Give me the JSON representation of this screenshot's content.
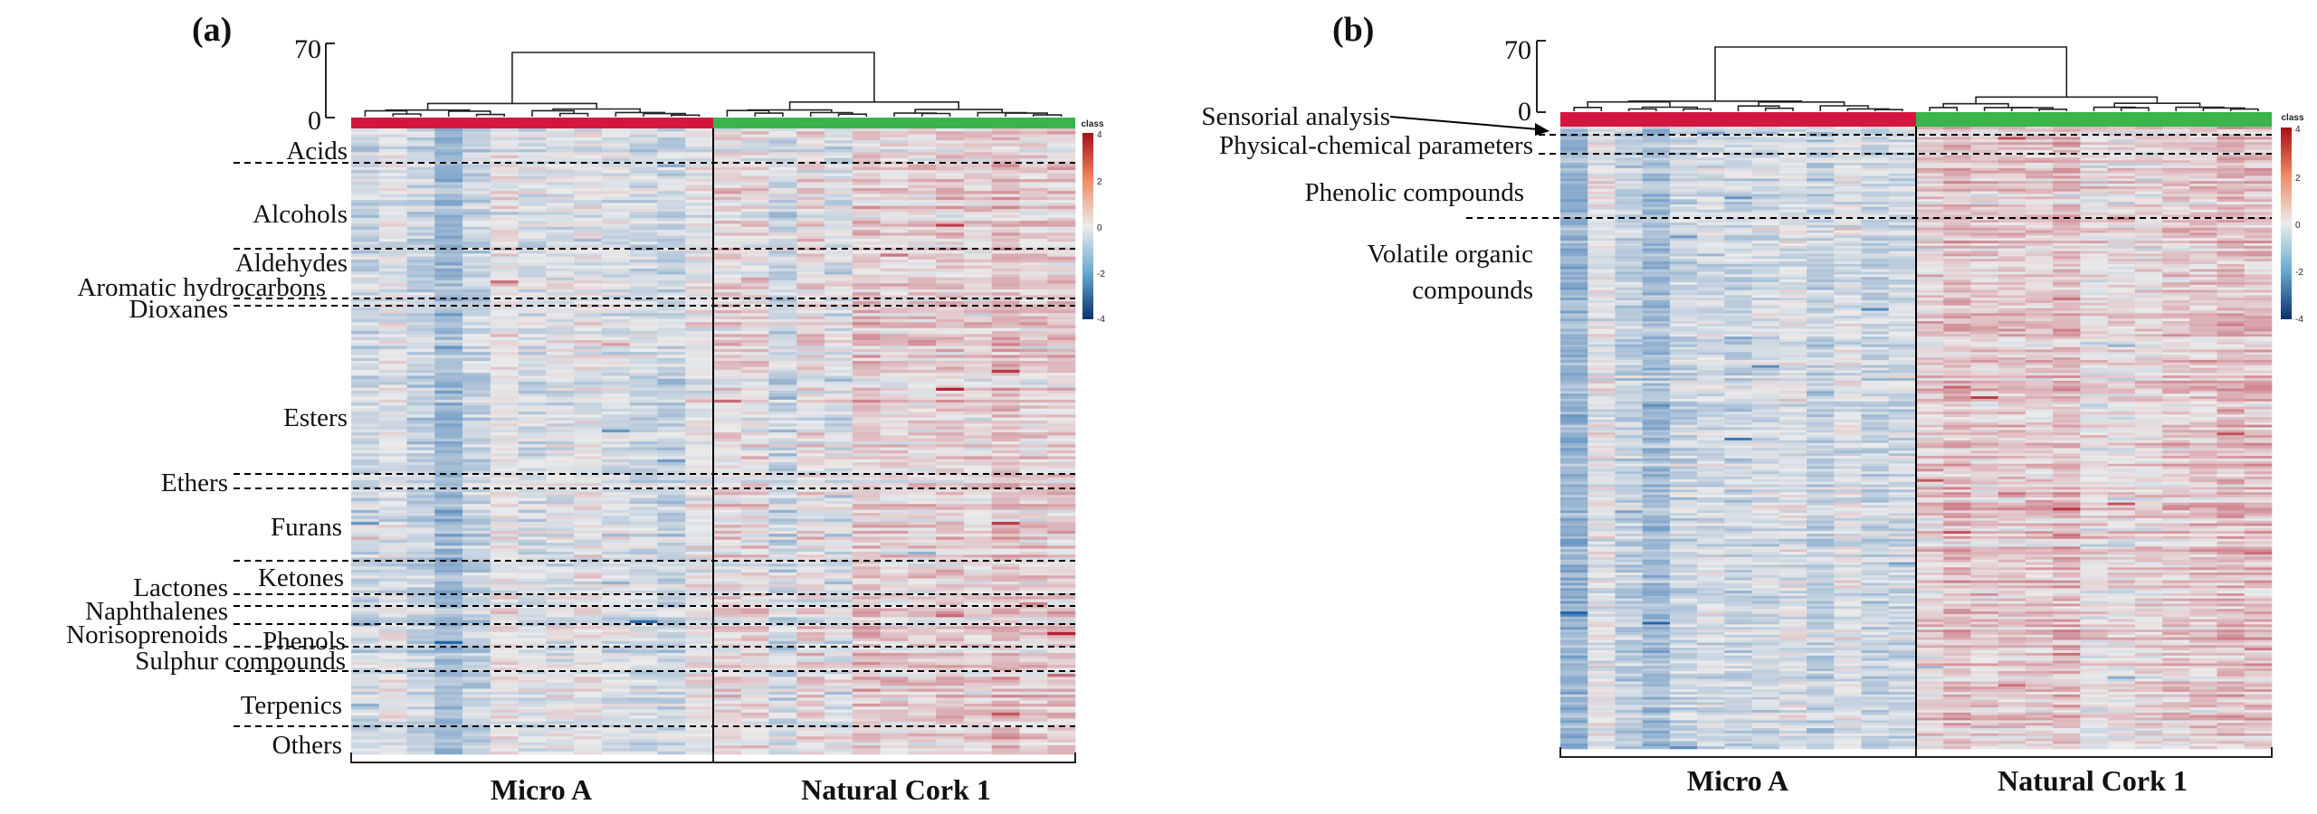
{
  "chart_data": [
    {
      "type": "heatmap",
      "panel_label": "(a)",
      "dendrogram_axis": {
        "ticks": [
          "70",
          "0"
        ]
      },
      "groups": [
        {
          "name": "Micro A",
          "color": "#d4163f",
          "n_columns": 13
        },
        {
          "name": "Natural Cork 1",
          "color": "#39b54a",
          "n_columns": 13
        }
      ],
      "row_categories": [
        "Acids",
        "Alcohols",
        "Aldehydes",
        "Aromatic hydrocarbons",
        "Dioxanes",
        "Esters",
        "Ethers",
        "Furans",
        "Ketones",
        "Lactones",
        "Naphthalenes",
        "Norisoprenoids",
        "Phenols",
        "Sulphur compounds",
        "Terpenics",
        "Others"
      ],
      "n_rows": 210,
      "colorbar": {
        "title": "class",
        "ticks": [
          "4",
          "2",
          "0",
          "-2",
          "-4"
        ],
        "range": [
          -4,
          4
        ],
        "colors": [
          "#2166ac",
          "#ebebeb",
          "#b2182b"
        ]
      },
      "seed": 7
    },
    {
      "type": "heatmap",
      "panel_label": "(b)",
      "dendrogram_axis": {
        "ticks": [
          "70",
          "0"
        ]
      },
      "groups": [
        {
          "name": "Micro A",
          "color": "#d4163f",
          "n_columns": 13
        },
        {
          "name": "Natural Cork 1",
          "color": "#39b54a",
          "n_columns": 13
        }
      ],
      "row_categories": [
        "Sensorial analysis",
        "Physical-chemical parameters",
        "Phenolic compounds",
        "Volatile organic compounds"
      ],
      "n_rows": 240,
      "colorbar": {
        "title": "class",
        "ticks": [
          "4",
          "2",
          "0",
          "-2",
          "-4"
        ],
        "range": [
          -4,
          4
        ],
        "colors": [
          "#2166ac",
          "#ebebeb",
          "#b2182b"
        ]
      },
      "seed": 19
    }
  ]
}
